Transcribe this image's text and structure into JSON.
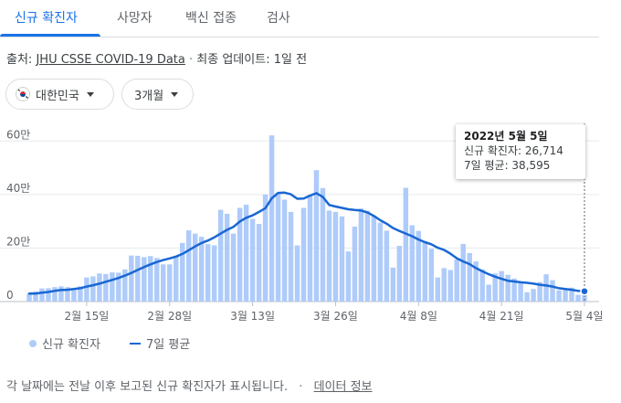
{
  "tabs": [
    {
      "label": "신규 확진자",
      "active": true
    },
    {
      "label": "사망자",
      "active": false
    },
    {
      "label": "백신 접종",
      "active": false
    },
    {
      "label": "검사",
      "active": false
    }
  ],
  "source": {
    "prefix": "출처:",
    "link": "JHU CSSE COVID-19 Data",
    "separator": "·",
    "updated": "최종 업데이트: 1일 전"
  },
  "filters": {
    "country": "대한민국",
    "country_icon": "south-korea-flag-icon",
    "period": "3개월"
  },
  "tooltip": {
    "date": "2022년 5월 5일",
    "new_cases": "신규 확진자: 26,714",
    "avg": "7일 평균: 38,595"
  },
  "legend": {
    "bars": "신규 확진자",
    "line": "7일 평균"
  },
  "footer": {
    "note": "각 날짜에는 전날 이후 보고된 신규 확진자가 표시됩니다.",
    "separator": "·",
    "link": "데이터 정보"
  },
  "colors": {
    "bar": "#aecbfa",
    "line": "#1967d2",
    "accent": "#1a73e8"
  },
  "chart_data": {
    "type": "bar",
    "title": "",
    "xlabel": "",
    "ylabel": "",
    "ylim": [
      0,
      700000
    ],
    "y_ticks": [
      {
        "value": 0,
        "label": "0"
      },
      {
        "value": 200000,
        "label": "20만"
      },
      {
        "value": 400000,
        "label": "40만"
      },
      {
        "value": 600000,
        "label": "60만"
      }
    ],
    "x_ticks": [
      {
        "index": 9,
        "label": "2월 15일"
      },
      {
        "index": 22,
        "label": "2월 28일"
      },
      {
        "index": 35,
        "label": "3월 13일"
      },
      {
        "index": 48,
        "label": "3월 26일"
      },
      {
        "index": 61,
        "label": "4월 8일"
      },
      {
        "index": 74,
        "label": "4월 21일"
      },
      {
        "index": 87,
        "label": "5월 4일"
      }
    ],
    "x_start": "2022년 2월 6일",
    "x_end": "2022년 5월 5일",
    "series": [
      {
        "name": "신규 확진자",
        "type": "bar",
        "values": [
          30000,
          38000,
          49000,
          50000,
          54000,
          57000,
          54000,
          44000,
          57000,
          90000,
          94000,
          105000,
          103000,
          109000,
          108000,
          120000,
          172000,
          171000,
          166000,
          170000,
          163000,
          139000,
          139000,
          171000,
          219000,
          266000,
          254000,
          242000,
          215000,
          210000,
          343000,
          328000,
          254000,
          350000,
          362000,
          309000,
          290000,
          400000,
          621000,
          406000,
          381000,
          335000,
          210000,
          350000,
          396000,
          491000,
          424000,
          340000,
          335000,
          318000,
          187000,
          280000,
          348000,
          339000,
          321000,
          295000,
          265000,
          127000,
          208000,
          425000,
          285000,
          264000,
          225000,
          197000,
          90000,
          125000,
          118000,
          157000,
          215000,
          181000,
          150000,
          120000,
          63000,
          105000,
          114000,
          100000,
          86000,
          75000,
          35000,
          47000,
          73000,
          102000,
          80000,
          42000,
          43000,
          52000,
          25000,
          26714
        ],
        "color": "#aecbfa"
      },
      {
        "name": "7일 평균",
        "type": "line",
        "values": [
          30000,
          30000,
          33000,
          36000,
          40000,
          43000,
          44000,
          47000,
          50000,
          56000,
          61000,
          67000,
          74000,
          81000,
          88000,
          97000,
          107000,
          118000,
          129000,
          139000,
          148000,
          155000,
          161000,
          168000,
          178000,
          192000,
          206000,
          219000,
          228000,
          240000,
          254000,
          268000,
          279000,
          299000,
          313000,
          322000,
          335000,
          349000,
          386000,
          406000,
          407000,
          401000,
          384000,
          385000,
          396000,
          405000,
          391000,
          361000,
          355000,
          350000,
          345000,
          342000,
          340000,
          333000,
          320000,
          304000,
          291000,
          275000,
          264000,
          254000,
          244000,
          232000,
          222000,
          214000,
          201000,
          193000,
          179000,
          162000,
          150000,
          140000,
          125000,
          113000,
          102000,
          93000,
          85000,
          78000,
          75000,
          72000,
          70000,
          67000,
          63000,
          60000,
          56000,
          50000,
          47000,
          44000,
          40000,
          38595
        ],
        "color": "#1967d2"
      }
    ],
    "grid": true,
    "legend_position": "bottom-left"
  }
}
